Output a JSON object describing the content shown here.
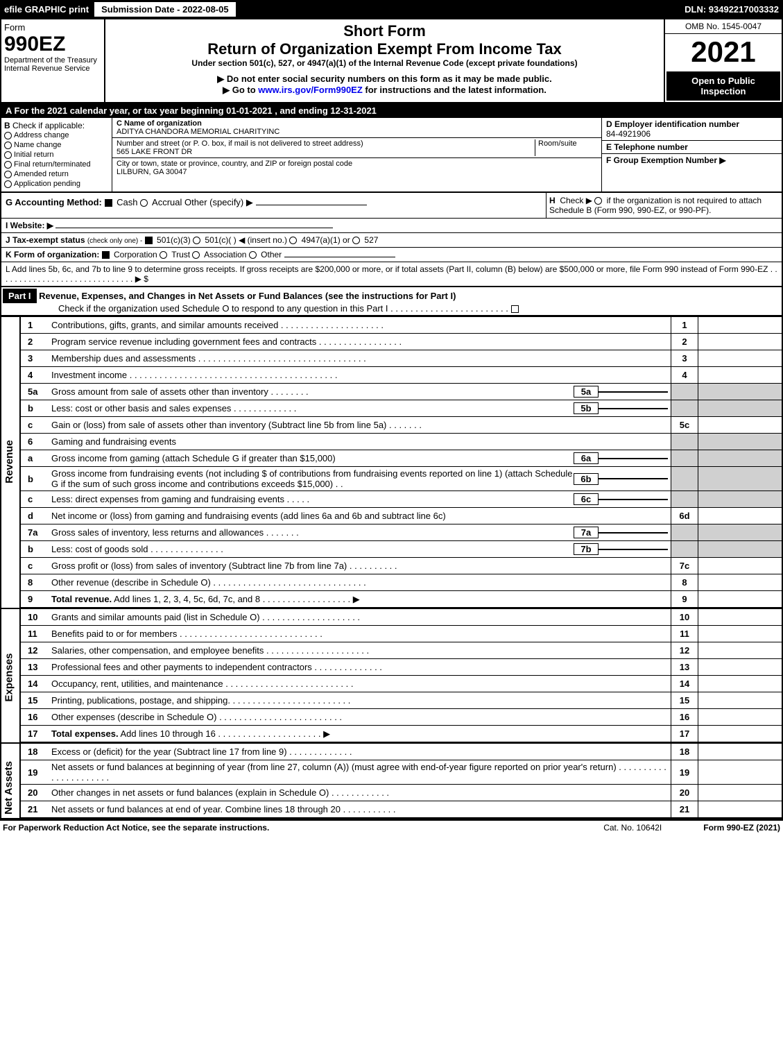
{
  "topbar": {
    "efile": "efile GRAPHIC print",
    "sub_date": "Submission Date - 2022-08-05",
    "dln": "DLN: 93492217003332"
  },
  "header": {
    "form_label": "Form",
    "form_num": "990EZ",
    "dept1": "Department of the Treasury",
    "dept2": "Internal Revenue Service",
    "title1": "Short Form",
    "title2": "Return of Organization Exempt From Income Tax",
    "under": "Under section 501(c), 527, or 4947(a)(1) of the Internal Revenue Code (except private foundations)",
    "ssn_warn": "▶ Do not enter social security numbers on this form as it may be made public.",
    "goto": "▶ Go to www.irs.gov/Form990EZ for instructions and the latest information.",
    "omb": "OMB No. 1545-0047",
    "year": "2021",
    "badge": "Open to Public Inspection"
  },
  "period": "A  For the 2021 calendar year, or tax year beginning 01-01-2021 , and ending 12-31-2021",
  "sectionB": {
    "label": "B",
    "check_label": "Check if applicable:",
    "items": [
      "Address change",
      "Name change",
      "Initial return",
      "Final return/terminated",
      "Amended return",
      "Application pending"
    ]
  },
  "sectionC": {
    "c_label": "C Name of organization",
    "name": "ADITYA CHANDORA MEMORIAL CHARITYINC",
    "addr_label": "Number and street (or P. O. box, if mail is not delivered to street address)",
    "room_label": "Room/suite",
    "addr": "565 LAKE FRONT DR",
    "city_label": "City or town, state or province, country, and ZIP or foreign postal code",
    "city": "LILBURN, GA  30047"
  },
  "sectionD": {
    "label": "D Employer identification number",
    "val": "84-4921906"
  },
  "sectionE": {
    "label": "E Telephone number",
    "val": ""
  },
  "sectionF": {
    "label": "F Group Exemption Number   ▶",
    "val": ""
  },
  "rowG": {
    "label": "G Accounting Method:",
    "cash": "Cash",
    "accrual": "Accrual",
    "other": "Other (specify) ▶"
  },
  "rowH": {
    "label": "H",
    "text": "Check ▶",
    "text2": "if the organization is not required to attach Schedule B (Form 990, 990-EZ, or 990-PF)."
  },
  "rowI": {
    "label": "I Website: ▶",
    "val": ""
  },
  "rowJ": {
    "label": "J Tax-exempt status",
    "sub": "(check only one) -",
    "opts": "501(c)(3)",
    "opts2": "501(c)(  ) ◀ (insert no.)",
    "opts3": "4947(a)(1) or",
    "opts4": "527"
  },
  "rowK": {
    "label": "K Form of organization:",
    "opts": [
      "Corporation",
      "Trust",
      "Association",
      "Other"
    ]
  },
  "rowL": "L Add lines 5b, 6c, and 7b to line 9 to determine gross receipts. If gross receipts are $200,000 or more, or if total assets (Part II, column (B) below) are $500,000 or more, file Form 990 instead of Form 990-EZ . . . . . . . . . . . . . . . . . . . . . . . . . . . . . . ▶ $",
  "part1": {
    "hdr": "Part I",
    "title": "Revenue, Expenses, and Changes in Net Assets or Fund Balances (see the instructions for Part I)",
    "check": "Check if the organization used Schedule O to respond to any question in this Part I . . . . . . . . . . . . . . . . . . . . . . . . "
  },
  "sides": {
    "revenue": "Revenue",
    "expenses": "Expenses",
    "netassets": "Net Assets"
  },
  "lines_rev": [
    {
      "n": "1",
      "t": "Contributions, gifts, grants, and similar amounts received . . . . . . . . . . . . . . . . . . . . .",
      "box": "1"
    },
    {
      "n": "2",
      "t": "Program service revenue including government fees and contracts . . . . . . . . . . . . . . . . .",
      "box": "2"
    },
    {
      "n": "3",
      "t": "Membership dues and assessments . . . . . . . . . . . . . . . . . . . . . . . . . . . . . . . . . .",
      "box": "3"
    },
    {
      "n": "4",
      "t": "Investment income . . . . . . . . . . . . . . . . . . . . . . . . . . . . . . . . . . . . . . . . . .",
      "box": "4"
    },
    {
      "n": "5a",
      "t": "Gross amount from sale of assets other than inventory . . . . . . . .",
      "mid": "5a",
      "grey": true
    },
    {
      "n": "b",
      "t": "Less: cost or other basis and sales expenses . . . . . . . . . . . . .",
      "mid": "5b",
      "grey": true
    },
    {
      "n": "c",
      "t": "Gain or (loss) from sale of assets other than inventory (Subtract line 5b from line 5a) . . . . . . .",
      "box": "5c"
    },
    {
      "n": "6",
      "t": "Gaming and fundraising events",
      "grey": true,
      "noboxnum": true
    },
    {
      "n": "a",
      "t": "Gross income from gaming (attach Schedule G if greater than $15,000)",
      "mid": "6a",
      "grey": true
    },
    {
      "n": "b",
      "t": "Gross income from fundraising events (not including $                    of contributions from fundraising events reported on line 1) (attach Schedule G if the sum of such gross income and contributions exceeds $15,000)   . .",
      "mid": "6b",
      "grey": true
    },
    {
      "n": "c",
      "t": "Less: direct expenses from gaming and fundraising events    . . . . .",
      "mid": "6c",
      "grey": true
    },
    {
      "n": "d",
      "t": "Net income or (loss) from gaming and fundraising events (add lines 6a and 6b and subtract line 6c)",
      "box": "6d"
    },
    {
      "n": "7a",
      "t": "Gross sales of inventory, less returns and allowances . . . . . . .",
      "mid": "7a",
      "grey": true
    },
    {
      "n": "b",
      "t": "Less: cost of goods sold         . . . . . . . . . . . . . . .",
      "mid": "7b",
      "grey": true
    },
    {
      "n": "c",
      "t": "Gross profit or (loss) from sales of inventory (Subtract line 7b from line 7a) . . . . . . . . . .",
      "box": "7c"
    },
    {
      "n": "8",
      "t": "Other revenue (describe in Schedule O) . . . . . . . . . . . . . . . . . . . . . . . . . . . . . . .",
      "box": "8"
    },
    {
      "n": "9",
      "t": "Total revenue. Add lines 1, 2, 3, 4, 5c, 6d, 7c, and 8  . . . . . . . . . . . . . . . . . .   ▶",
      "box": "9",
      "bold": true
    }
  ],
  "lines_exp": [
    {
      "n": "10",
      "t": "Grants and similar amounts paid (list in Schedule O) . . . . . . . . . . . . . . . . . . . .",
      "box": "10"
    },
    {
      "n": "11",
      "t": "Benefits paid to or for members     . . . . . . . . . . . . . . . . . . . . . . . . . . . . .",
      "box": "11"
    },
    {
      "n": "12",
      "t": "Salaries, other compensation, and employee benefits . . . . . . . . . . . . . . . . . . . . .",
      "box": "12"
    },
    {
      "n": "13",
      "t": "Professional fees and other payments to independent contractors . . . . . . . . . . . . . .",
      "box": "13"
    },
    {
      "n": "14",
      "t": "Occupancy, rent, utilities, and maintenance . . . . . . . . . . . . . . . . . . . . . . . . . .",
      "box": "14"
    },
    {
      "n": "15",
      "t": "Printing, publications, postage, and shipping. . . . . . . . . . . . . . . . . . . . . . . . .",
      "box": "15"
    },
    {
      "n": "16",
      "t": "Other expenses (describe in Schedule O)    . . . . . . . . . . . . . . . . . . . . . . . . .",
      "box": "16"
    },
    {
      "n": "17",
      "t": "Total expenses. Add lines 10 through 16     . . . . . . . . . . . . . . . . . . . . .   ▶",
      "box": "17",
      "bold": true
    }
  ],
  "lines_na": [
    {
      "n": "18",
      "t": "Excess or (deficit) for the year (Subtract line 17 from line 9)       . . . . . . . . . . . . .",
      "box": "18"
    },
    {
      "n": "19",
      "t": "Net assets or fund balances at beginning of year (from line 27, column (A)) (must agree with end-of-year figure reported on prior year's return) . . . . . . . . . . . . . . . . . . . . . .",
      "box": "19",
      "grey_partial": true
    },
    {
      "n": "20",
      "t": "Other changes in net assets or fund balances (explain in Schedule O) . . . . . . . . . . . .",
      "box": "20"
    },
    {
      "n": "21",
      "t": "Net assets or fund balances at end of year. Combine lines 18 through 20 . . . . . . . . . . .",
      "box": "21"
    }
  ],
  "footer": {
    "left": "For Paperwork Reduction Act Notice, see the separate instructions.",
    "mid": "Cat. No. 10642I",
    "right": "Form 990-EZ (2021)"
  },
  "colors": {
    "black": "#000000",
    "white": "#ffffff",
    "grey": "#d0d0d0",
    "link": "#0000ee"
  }
}
